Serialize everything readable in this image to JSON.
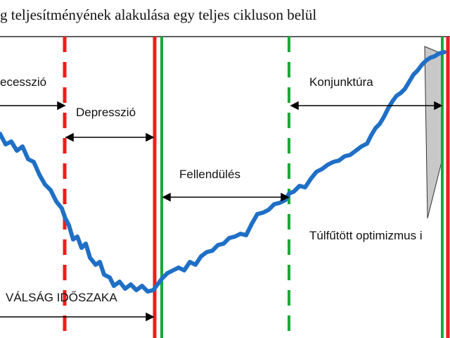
{
  "title": "g teljesítményének alakulása egy teljes cikluson belül",
  "labels": {
    "recession": "ecesszió",
    "depression": "Depresszió",
    "recovery": "Fellendülés",
    "boom": "Konjunktúra",
    "overheated": "Túlfűtött optimizmus i",
    "crisis_period": "VÁLSÁG IDŐSZAKA"
  },
  "colors": {
    "curve": "#1f6fc6",
    "red_boundary": "#ee1c1c",
    "green_boundary": "#1aa83a",
    "arrow": "#000000",
    "wedge_fill": "#c8c8c8"
  }
}
